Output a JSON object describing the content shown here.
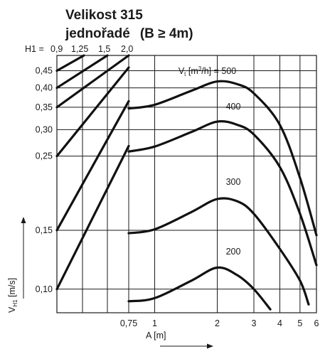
{
  "chart_data": {
    "type": "line",
    "title_line1": "Velikost 315",
    "title_line2_main": "jednořadé",
    "title_line2_cond": "(B ≥ 4m)",
    "h1_prefix": "H1 =",
    "h1_values": [
      "0,9",
      "1,25",
      "1,5",
      "2,0"
    ],
    "ylabel": "VH1 [m/s]",
    "ylabel_main": "V",
    "ylabel_sub": "H1",
    "ylabel_unit": " [m/s]",
    "xlabel": "A [m]",
    "x_scale": "log",
    "y_scale": "log",
    "xlim": [
      0.75,
      6
    ],
    "ylim": [
      0.085,
      0.5
    ],
    "x_ticks": [
      {
        "value": 0.75,
        "label": "0,75"
      },
      {
        "value": 1,
        "label": "1"
      },
      {
        "value": 2,
        "label": "2"
      },
      {
        "value": 3,
        "label": "3"
      },
      {
        "value": 4,
        "label": "4"
      },
      {
        "value": 5,
        "label": "5"
      },
      {
        "value": 6,
        "label": "6"
      }
    ],
    "y_ticks": [
      {
        "value": 0.1,
        "label": "0,10"
      },
      {
        "value": 0.15,
        "label": "0,15"
      },
      {
        "value": 0.25,
        "label": "0,25"
      },
      {
        "value": 0.3,
        "label": "0,30"
      },
      {
        "value": 0.35,
        "label": "0,35"
      },
      {
        "value": 0.4,
        "label": "0,40"
      },
      {
        "value": 0.45,
        "label": "0,45"
      }
    ],
    "grid": true,
    "series_label_prefix": "Vt [m³/h] = ",
    "series_label_prefix_main": "V",
    "series_label_prefix_sub": "t",
    "series_label_prefix_unit_pre": " [m",
    "series_label_prefix_unit_sup": "3",
    "series_label_prefix_unit_post": "/h] = ",
    "series": [
      {
        "name": "500",
        "points": [
          [
            0.75,
            0.347
          ],
          [
            1.0,
            0.356
          ],
          [
            1.5,
            0.392
          ],
          [
            2.0,
            0.418
          ],
          [
            2.5,
            0.41
          ],
          [
            3.0,
            0.385
          ],
          [
            4.0,
            0.31
          ],
          [
            5.0,
            0.215
          ],
          [
            6.0,
            0.145
          ]
        ]
      },
      {
        "name": "400",
        "points": [
          [
            0.75,
            0.258
          ],
          [
            1.0,
            0.267
          ],
          [
            1.5,
            0.295
          ],
          [
            2.0,
            0.317
          ],
          [
            2.5,
            0.31
          ],
          [
            3.0,
            0.29
          ],
          [
            4.0,
            0.232
          ],
          [
            5.0,
            0.168
          ],
          [
            6.0,
            0.118
          ]
        ]
      },
      {
        "name": "300",
        "points": [
          [
            0.75,
            0.147
          ],
          [
            1.0,
            0.151
          ],
          [
            1.5,
            0.17
          ],
          [
            2.0,
            0.186
          ],
          [
            2.5,
            0.183
          ],
          [
            3.0,
            0.168
          ],
          [
            4.0,
            0.132
          ],
          [
            5.0,
            0.106
          ],
          [
            5.5,
            0.09
          ]
        ]
      },
      {
        "name": "200",
        "points": [
          [
            0.75,
            0.092
          ],
          [
            1.0,
            0.094
          ],
          [
            1.5,
            0.106
          ],
          [
            2.0,
            0.116
          ],
          [
            2.5,
            0.11
          ],
          [
            3.0,
            0.1
          ],
          [
            3.6,
            0.087
          ]
        ]
      }
    ],
    "h1_lines": [
      {
        "label": "2,0",
        "y_at_075": 0.268
      },
      {
        "label": "1,5",
        "y_at_075": 0.365
      },
      {
        "label": "1,25",
        "y_at_075": 0.46
      },
      {
        "label": "0,9",
        "y_at_075": 0.5
      }
    ]
  }
}
